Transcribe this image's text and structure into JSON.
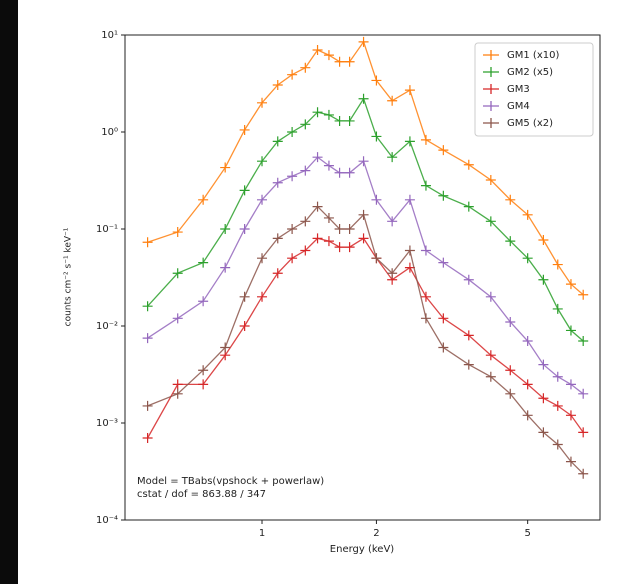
{
  "chart_data": {
    "type": "line",
    "xlabel": "Energy (keV)",
    "ylabel": "counts cm⁻² s⁻¹ keV⁻¹",
    "annotations": [
      "Model = TBabs(vpshock + powerlaw)",
      "cstat / dof = 863.88 / 347"
    ],
    "log_x": true,
    "log_y": true,
    "legend": "upper right",
    "xlim": [
      0.436,
      7.75
    ],
    "ylim": [
      0.0001,
      10
    ],
    "xticks": [
      1,
      2,
      5
    ],
    "yticks": [
      {
        "value": 0.0001,
        "label": "10⁻⁴"
      },
      {
        "value": 0.001,
        "label": "10⁻³"
      },
      {
        "value": 0.01,
        "label": "10⁻²"
      },
      {
        "value": 0.1,
        "label": "10⁻¹"
      },
      {
        "value": 1,
        "label": "10⁰"
      },
      {
        "value": 10,
        "label": "10¹"
      }
    ],
    "x": [
      0.5,
      0.6,
      0.7,
      0.8,
      0.9,
      1.0,
      1.1,
      1.2,
      1.3,
      1.4,
      1.5,
      1.6,
      1.7,
      1.85,
      2.0,
      2.2,
      2.45,
      2.7,
      3.0,
      3.5,
      4.0,
      4.5,
      5.0,
      5.5,
      6.0,
      6.5,
      7.0
    ],
    "series": [
      {
        "name": "GM1 (x10)",
        "color": "#ff7f0e",
        "values": [
          0.073,
          0.093,
          0.2,
          0.43,
          1.05,
          2.0,
          3.05,
          3.9,
          4.6,
          7.0,
          6.2,
          5.3,
          5.3,
          8.5,
          3.4,
          2.1,
          2.7,
          0.83,
          0.65,
          0.46,
          0.32,
          0.2,
          0.14,
          0.077,
          0.043,
          0.027,
          0.021
        ]
      },
      {
        "name": "GM2 (x5)",
        "color": "#2ca02c",
        "values": [
          0.016,
          0.035,
          0.045,
          0.1,
          0.25,
          0.5,
          0.8,
          1.0,
          1.2,
          1.6,
          1.5,
          1.3,
          1.3,
          2.2,
          0.9,
          0.55,
          0.8,
          0.28,
          0.22,
          0.17,
          0.12,
          0.075,
          0.05,
          0.03,
          0.015,
          0.009,
          0.007
        ]
      },
      {
        "name": "GM3",
        "color": "#d62728",
        "values": [
          0.0007,
          0.0025,
          0.0025,
          0.005,
          0.01,
          0.02,
          0.035,
          0.05,
          0.06,
          0.08,
          0.075,
          0.065,
          0.065,
          0.08,
          0.05,
          0.03,
          0.04,
          0.02,
          0.012,
          0.008,
          0.005,
          0.0035,
          0.0025,
          0.0018,
          0.0015,
          0.0012,
          0.0008
        ]
      },
      {
        "name": "GM4",
        "color": "#9467bd",
        "values": [
          0.0075,
          0.012,
          0.018,
          0.04,
          0.1,
          0.2,
          0.3,
          0.35,
          0.4,
          0.55,
          0.45,
          0.38,
          0.38,
          0.5,
          0.2,
          0.12,
          0.2,
          0.06,
          0.045,
          0.03,
          0.02,
          0.011,
          0.007,
          0.004,
          0.003,
          0.0025,
          0.002
        ]
      },
      {
        "name": "GM5 (x2)",
        "color": "#8c564b",
        "values": [
          0.0015,
          0.002,
          0.0035,
          0.006,
          0.02,
          0.05,
          0.08,
          0.1,
          0.12,
          0.17,
          0.13,
          0.1,
          0.1,
          0.14,
          0.05,
          0.035,
          0.06,
          0.012,
          0.006,
          0.004,
          0.003,
          0.002,
          0.0012,
          0.0008,
          0.0006,
          0.0004,
          0.0003
        ]
      }
    ]
  }
}
